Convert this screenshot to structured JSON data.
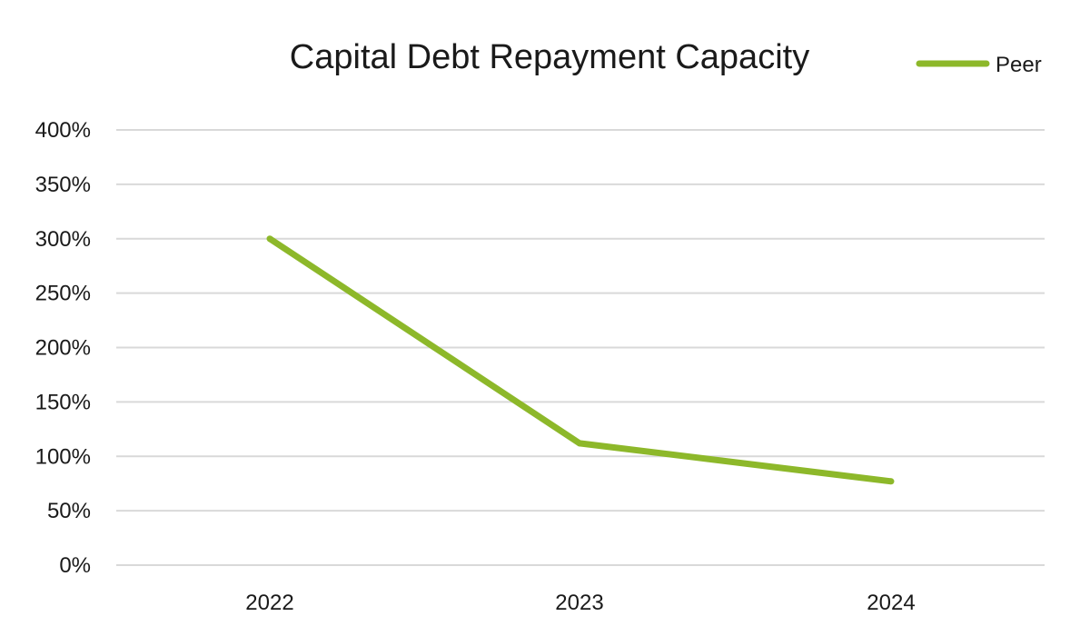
{
  "chart_data": {
    "type": "line",
    "title": "Capital Debt Repayment Capacity",
    "xlabel": "",
    "ylabel": "",
    "categories": [
      "2022",
      "2023",
      "2024"
    ],
    "series": [
      {
        "name": "Peer",
        "values": [
          300,
          112,
          77
        ],
        "color": "#8db82a"
      }
    ],
    "y_ticks": [
      "0%",
      "50%",
      "100%",
      "150%",
      "200%",
      "250%",
      "300%",
      "350%",
      "400%"
    ],
    "ylim": [
      0,
      400
    ],
    "y_unit": "%",
    "grid": true,
    "legend_position": "top-right"
  }
}
